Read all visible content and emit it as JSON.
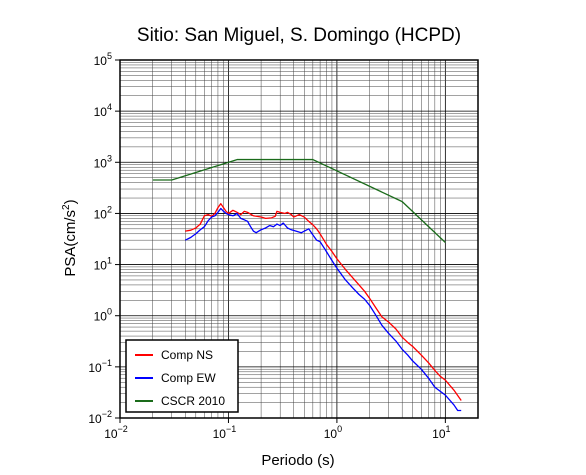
{
  "chart_data": {
    "type": "line",
    "title": "Sitio: San Miguel, S. Domingo (HCPD)",
    "xlabel": "Periodo (s)",
    "ylabel_main": "PSA(cm/s",
    "ylabel_sup": "2",
    "ylabel_end": ")",
    "x_scale": "log",
    "y_scale": "log",
    "xlim": [
      0.01,
      20
    ],
    "ylim": [
      0.01,
      100000
    ],
    "grid": true,
    "legend_position": "bottom-left",
    "x_ticks": [
      {
        "value": 0.01,
        "base": "10",
        "exp": "−2"
      },
      {
        "value": 0.1,
        "base": "10",
        "exp": "−1"
      },
      {
        "value": 1,
        "base": "10",
        "exp": "0"
      },
      {
        "value": 10,
        "base": "10",
        "exp": "1"
      }
    ],
    "y_ticks": [
      {
        "value": 0.01,
        "base": "10",
        "exp": "−2"
      },
      {
        "value": 0.1,
        "base": "10",
        "exp": "−1"
      },
      {
        "value": 1,
        "base": "10",
        "exp": "0"
      },
      {
        "value": 10,
        "base": "10",
        "exp": "1"
      },
      {
        "value": 100,
        "base": "10",
        "exp": "2"
      },
      {
        "value": 1000,
        "base": "10",
        "exp": "3"
      },
      {
        "value": 10000,
        "base": "10",
        "exp": "4"
      },
      {
        "value": 100000,
        "base": "10",
        "exp": "5"
      }
    ],
    "series": [
      {
        "name": "Comp NS",
        "color": "#ff0000",
        "points": [
          [
            0.04,
            45
          ],
          [
            0.045,
            47
          ],
          [
            0.05,
            52
          ],
          [
            0.055,
            62
          ],
          [
            0.06,
            90
          ],
          [
            0.065,
            95
          ],
          [
            0.07,
            88
          ],
          [
            0.075,
            100
          ],
          [
            0.08,
            130
          ],
          [
            0.085,
            155
          ],
          [
            0.09,
            130
          ],
          [
            0.095,
            110
          ],
          [
            0.1,
            100
          ],
          [
            0.11,
            115
          ],
          [
            0.12,
            105
          ],
          [
            0.13,
            95
          ],
          [
            0.14,
            110
          ],
          [
            0.15,
            105
          ],
          [
            0.17,
            90
          ],
          [
            0.2,
            85
          ],
          [
            0.22,
            80
          ],
          [
            0.25,
            82
          ],
          [
            0.27,
            88
          ],
          [
            0.28,
            110
          ],
          [
            0.3,
            105
          ],
          [
            0.33,
            100
          ],
          [
            0.35,
            105
          ],
          [
            0.38,
            95
          ],
          [
            0.4,
            85
          ],
          [
            0.45,
            95
          ],
          [
            0.5,
            85
          ],
          [
            0.55,
            70
          ],
          [
            0.6,
            60
          ],
          [
            0.65,
            50
          ],
          [
            0.7,
            40
          ],
          [
            0.8,
            25
          ],
          [
            0.9,
            18
          ],
          [
            1.0,
            13
          ],
          [
            1.2,
            8
          ],
          [
            1.4,
            5.5
          ],
          [
            1.6,
            4
          ],
          [
            1.8,
            3
          ],
          [
            2.0,
            2.2
          ],
          [
            2.3,
            1.4
          ],
          [
            2.6,
            0.95
          ],
          [
            3.0,
            0.75
          ],
          [
            3.5,
            0.55
          ],
          [
            4.0,
            0.38
          ],
          [
            4.5,
            0.3
          ],
          [
            5.0,
            0.25
          ],
          [
            6.0,
            0.17
          ],
          [
            7.0,
            0.12
          ],
          [
            8.0,
            0.085
          ],
          [
            9.0,
            0.065
          ],
          [
            10,
            0.055
          ],
          [
            12,
            0.035
          ],
          [
            14,
            0.022
          ]
        ]
      },
      {
        "name": "Comp EW",
        "color": "#0000ff",
        "points": [
          [
            0.04,
            30
          ],
          [
            0.045,
            34
          ],
          [
            0.05,
            40
          ],
          [
            0.055,
            48
          ],
          [
            0.06,
            55
          ],
          [
            0.065,
            72
          ],
          [
            0.07,
            85
          ],
          [
            0.075,
            90
          ],
          [
            0.08,
            105
          ],
          [
            0.085,
            125
          ],
          [
            0.09,
            110
          ],
          [
            0.095,
            100
          ],
          [
            0.1,
            95
          ],
          [
            0.11,
            90
          ],
          [
            0.12,
            100
          ],
          [
            0.13,
            80
          ],
          [
            0.14,
            75
          ],
          [
            0.15,
            70
          ],
          [
            0.16,
            55
          ],
          [
            0.17,
            45
          ],
          [
            0.18,
            42
          ],
          [
            0.2,
            48
          ],
          [
            0.22,
            52
          ],
          [
            0.24,
            58
          ],
          [
            0.26,
            55
          ],
          [
            0.28,
            62
          ],
          [
            0.3,
            58
          ],
          [
            0.32,
            65
          ],
          [
            0.35,
            52
          ],
          [
            0.38,
            48
          ],
          [
            0.42,
            45
          ],
          [
            0.47,
            42
          ],
          [
            0.5,
            45
          ],
          [
            0.55,
            50
          ],
          [
            0.6,
            38
          ],
          [
            0.65,
            30
          ],
          [
            0.7,
            28
          ],
          [
            0.8,
            18
          ],
          [
            0.9,
            12
          ],
          [
            1.0,
            8.5
          ],
          [
            1.2,
            5
          ],
          [
            1.4,
            3.5
          ],
          [
            1.6,
            2.6
          ],
          [
            1.8,
            2.1
          ],
          [
            2.0,
            1.6
          ],
          [
            2.3,
            1.0
          ],
          [
            2.6,
            0.65
          ],
          [
            3.0,
            0.45
          ],
          [
            3.5,
            0.32
          ],
          [
            4.0,
            0.22
          ],
          [
            4.5,
            0.17
          ],
          [
            5.0,
            0.13
          ],
          [
            6.0,
            0.09
          ],
          [
            7.0,
            0.06
          ],
          [
            8.0,
            0.04
          ],
          [
            10,
            0.028
          ],
          [
            12,
            0.018
          ],
          [
            13,
            0.014
          ],
          [
            14,
            0.014
          ]
        ]
      },
      {
        "name": "CSCR 2010",
        "color": "#1a6b1a",
        "points": [
          [
            0.02,
            450
          ],
          [
            0.03,
            450
          ],
          [
            0.12,
            1130
          ],
          [
            0.6,
            1130
          ],
          [
            4.0,
            170
          ],
          [
            10,
            27
          ]
        ]
      }
    ]
  }
}
